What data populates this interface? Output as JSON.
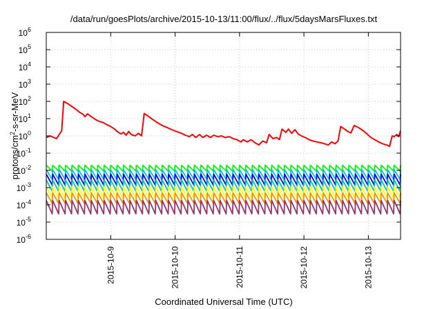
{
  "chart_data": {
    "type": "line",
    "title": "/data/run/goesPlots/archive/2015-10-13/11:00/flux/../flux/5daysMarsFluxes.txt",
    "xlabel": "Coordinated Universal Time (UTC)",
    "ylabel": "protons/cm²-s-sr-MeV",
    "ylabel_parts": {
      "pre": "protons/cm",
      "sup": "2",
      "post": "-s-sr-MeV"
    },
    "xlim": [
      8.0,
      13.5
    ],
    "ylim_log10": [
      -6,
      6
    ],
    "y_scale": "log",
    "grid": true,
    "x_ticks": [
      {
        "x": 9,
        "label": "2015-10-9"
      },
      {
        "x": 10,
        "label": "2015-10-10"
      },
      {
        "x": 11,
        "label": "2015-10-11"
      },
      {
        "x": 12,
        "label": "2015-10-12"
      },
      {
        "x": 13,
        "label": "2015-10-13"
      }
    ],
    "y_ticks": [
      {
        "exp": -6,
        "base": "10",
        "sup": "-6"
      },
      {
        "exp": -5,
        "base": "10",
        "sup": "-5"
      },
      {
        "exp": -4,
        "base": "10",
        "sup": "-4"
      },
      {
        "exp": -3,
        "base": "10",
        "sup": "-3"
      },
      {
        "exp": -2,
        "base": "10",
        "sup": "-2"
      },
      {
        "exp": -1,
        "base": "10",
        "sup": "-1"
      },
      {
        "exp": 0,
        "base": "10",
        "sup": "0"
      },
      {
        "exp": 1,
        "base": "10",
        "sup": "1"
      },
      {
        "exp": 2,
        "base": "10",
        "sup": "2"
      },
      {
        "exp": 3,
        "base": "10",
        "sup": "3"
      },
      {
        "exp": 4,
        "base": "10",
        "sup": "4"
      },
      {
        "exp": 5,
        "base": "10",
        "sup": "5"
      },
      {
        "exp": 6,
        "base": "10",
        "sup": "6"
      }
    ],
    "series": [
      {
        "color": "#ff0000",
        "points": [
          [
            8.0,
            0.8
          ],
          [
            8.06,
            1.0
          ],
          [
            8.12,
            0.8
          ],
          [
            8.16,
            0.7
          ],
          [
            8.2,
            1.2
          ],
          [
            8.24,
            2.0
          ],
          [
            8.27,
            100
          ],
          [
            8.33,
            75
          ],
          [
            8.4,
            50
          ],
          [
            8.46,
            35
          ],
          [
            8.52,
            23
          ],
          [
            8.57,
            18
          ],
          [
            8.6,
            13
          ],
          [
            8.64,
            19
          ],
          [
            8.7,
            13
          ],
          [
            8.76,
            9
          ],
          [
            8.82,
            7
          ],
          [
            8.88,
            6
          ],
          [
            8.94,
            4.5
          ],
          [
            9.0,
            3.5
          ],
          [
            9.06,
            2.5
          ],
          [
            9.1,
            1.8
          ],
          [
            9.16,
            1.3
          ],
          [
            9.2,
            1.6
          ],
          [
            9.24,
            1.1
          ],
          [
            9.28,
            1.8
          ],
          [
            9.32,
            1.2
          ],
          [
            9.38,
            1.0
          ],
          [
            9.43,
            1.4
          ],
          [
            9.48,
            1.0
          ],
          [
            9.52,
            20
          ],
          [
            9.58,
            14
          ],
          [
            9.65,
            9
          ],
          [
            9.72,
            6
          ],
          [
            9.8,
            4
          ],
          [
            9.88,
            3
          ],
          [
            9.95,
            2.3
          ],
          [
            10.02,
            1.8
          ],
          [
            10.1,
            1.4
          ],
          [
            10.16,
            1.1
          ],
          [
            10.22,
            0.9
          ],
          [
            10.27,
            1.2
          ],
          [
            10.32,
            0.8
          ],
          [
            10.38,
            1.2
          ],
          [
            10.43,
            0.8
          ],
          [
            10.49,
            1.1
          ],
          [
            10.55,
            0.8
          ],
          [
            10.6,
            1.1
          ],
          [
            10.66,
            0.9
          ],
          [
            10.72,
            1.0
          ],
          [
            10.78,
            0.8
          ],
          [
            10.84,
            0.9
          ],
          [
            10.9,
            0.7
          ],
          [
            10.96,
            0.6
          ],
          [
            11.02,
            0.45
          ],
          [
            11.06,
            0.6
          ],
          [
            11.12,
            0.45
          ],
          [
            11.18,
            0.6
          ],
          [
            11.24,
            0.4
          ],
          [
            11.3,
            0.3
          ],
          [
            11.36,
            0.5
          ],
          [
            11.42,
            0.4
          ],
          [
            11.46,
            1.2
          ],
          [
            11.52,
            0.7
          ],
          [
            11.58,
            0.8
          ],
          [
            11.62,
            0.6
          ],
          [
            11.66,
            2.5
          ],
          [
            11.72,
            1.6
          ],
          [
            11.76,
            2.5
          ],
          [
            11.81,
            1.4
          ],
          [
            11.86,
            2.3
          ],
          [
            11.91,
            1.3
          ],
          [
            11.96,
            1.0
          ],
          [
            12.02,
            0.8
          ],
          [
            12.08,
            0.6
          ],
          [
            12.14,
            0.5
          ],
          [
            12.2,
            0.45
          ],
          [
            12.26,
            0.4
          ],
          [
            12.32,
            0.35
          ],
          [
            12.38,
            0.3
          ],
          [
            12.43,
            0.45
          ],
          [
            12.48,
            0.35
          ],
          [
            12.53,
            0.5
          ],
          [
            12.57,
            3.5
          ],
          [
            12.63,
            2.5
          ],
          [
            12.68,
            1.8
          ],
          [
            12.73,
            1.5
          ],
          [
            12.78,
            4.0
          ],
          [
            12.85,
            3.0
          ],
          [
            12.92,
            2.0
          ],
          [
            12.98,
            1.3
          ],
          [
            13.04,
            0.8
          ],
          [
            13.1,
            0.6
          ],
          [
            13.16,
            0.45
          ],
          [
            13.22,
            0.35
          ],
          [
            13.28,
            0.3
          ],
          [
            13.33,
            0.25
          ],
          [
            13.37,
            1.0
          ],
          [
            13.4,
            0.9
          ],
          [
            13.44,
            1.2
          ],
          [
            13.47,
            0.9
          ],
          [
            13.5,
            2.0
          ]
        ]
      },
      {
        "color": "#00ff00",
        "sawtooth": {
          "low": 0.009,
          "high": 0.02,
          "period": 0.1,
          "start": 8.0,
          "end": 13.5
        }
      },
      {
        "color": "#00bfff",
        "sawtooth": {
          "low": 0.003,
          "high": 0.011,
          "period": 0.1,
          "start": 8.0,
          "end": 13.5
        }
      },
      {
        "color": "#0000ff",
        "sawtooth": {
          "low": 0.0014,
          "high": 0.006,
          "period": 0.1,
          "start": 8.0,
          "end": 13.5
        }
      },
      {
        "color": "#00c8a0",
        "sawtooth": {
          "low": 0.0006,
          "high": 0.0028,
          "period": 0.1,
          "start": 8.0,
          "end": 13.5
        }
      },
      {
        "color": "#ffff00",
        "sawtooth": {
          "low": 0.00025,
          "high": 0.0011,
          "period": 0.1,
          "start": 8.0,
          "end": 13.5
        }
      },
      {
        "color": "#ff8c00",
        "sawtooth": {
          "low": 0.00012,
          "high": 0.0005,
          "period": 0.1,
          "start": 8.0,
          "end": 13.5
        }
      },
      {
        "color": "#993366",
        "sawtooth": {
          "low": 3e-05,
          "high": 0.00018,
          "period": 0.1,
          "start": 8.0,
          "end": 13.5
        }
      }
    ]
  }
}
